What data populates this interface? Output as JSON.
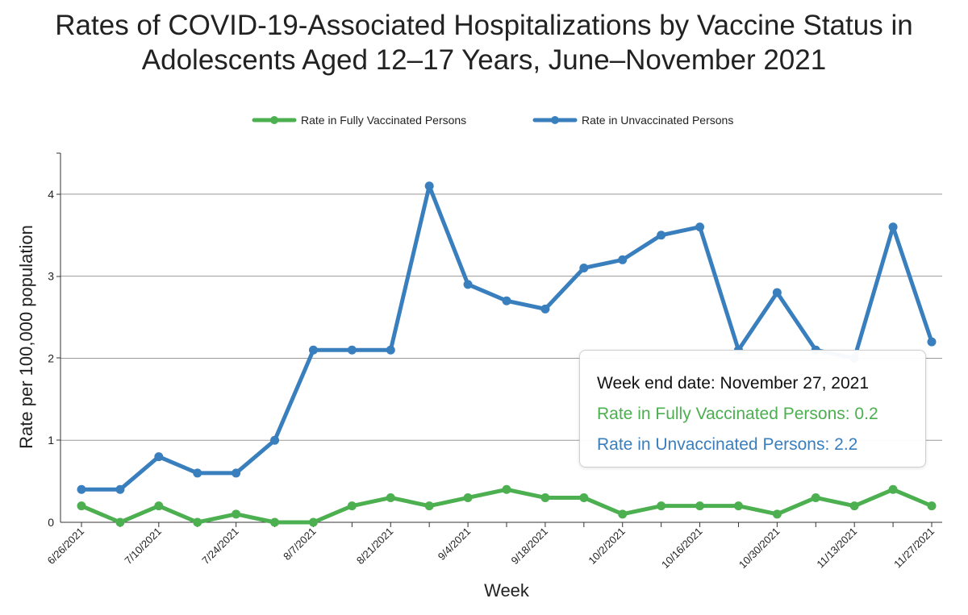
{
  "chart_data": {
    "type": "line",
    "title": "Rates of COVID-19-Associated Hospitalizations by Vaccine Status in\nAdolescents Aged 12–17 Years, June–November 2021",
    "xlabel": "Week",
    "ylabel": "Rate per 100,000 population",
    "ylim": [
      0,
      4.5
    ],
    "yticks": [
      "0",
      "1",
      "2",
      "3",
      "4"
    ],
    "grid": "horizontal",
    "legend_position": "top",
    "x": [
      "6/26/2021",
      "7/3/2021",
      "7/10/2021",
      "7/17/2021",
      "7/24/2021",
      "7/31/2021",
      "8/7/2021",
      "8/14/2021",
      "8/21/2021",
      "8/28/2021",
      "9/4/2021",
      "9/11/2021",
      "9/18/2021",
      "9/25/2021",
      "10/2/2021",
      "10/9/2021",
      "10/16/2021",
      "10/23/2021",
      "10/30/2021",
      "11/6/2021",
      "11/13/2021",
      "11/20/2021",
      "11/27/2021"
    ],
    "x_tick_labels_shown": [
      "6/26/2021",
      "7/10/2021",
      "7/24/2021",
      "8/7/2021",
      "8/21/2021",
      "9/4/2021",
      "9/18/2021",
      "10/2/2021",
      "10/16/2021",
      "10/30/2021",
      "11/13/2021",
      "11/27/2021"
    ],
    "series": [
      {
        "name": "Rate in Fully Vaccinated Persons",
        "color": "#4caf50",
        "values": [
          0.2,
          0.0,
          0.2,
          0.0,
          0.1,
          0.0,
          0.0,
          0.2,
          0.3,
          0.2,
          0.3,
          0.4,
          0.3,
          0.3,
          0.1,
          0.2,
          0.2,
          0.2,
          0.1,
          0.3,
          0.2,
          0.4,
          0.2
        ]
      },
      {
        "name": "Rate in Unvaccinated Persons",
        "color": "#3a7fbd",
        "values": [
          0.4,
          0.4,
          0.8,
          0.6,
          0.6,
          1.0,
          2.1,
          2.1,
          2.1,
          4.1,
          2.9,
          2.7,
          2.6,
          3.1,
          3.2,
          3.5,
          3.6,
          2.1,
          2.8,
          2.1,
          2.0,
          3.6,
          2.2
        ]
      }
    ],
    "tooltip": {
      "date_line": "Week end date: November 27, 2021",
      "vaccinated_line": "Rate in Fully Vaccinated Persons: 0.2",
      "unvaccinated_line": "Rate in Unvaccinated Persons: 2.2"
    }
  }
}
